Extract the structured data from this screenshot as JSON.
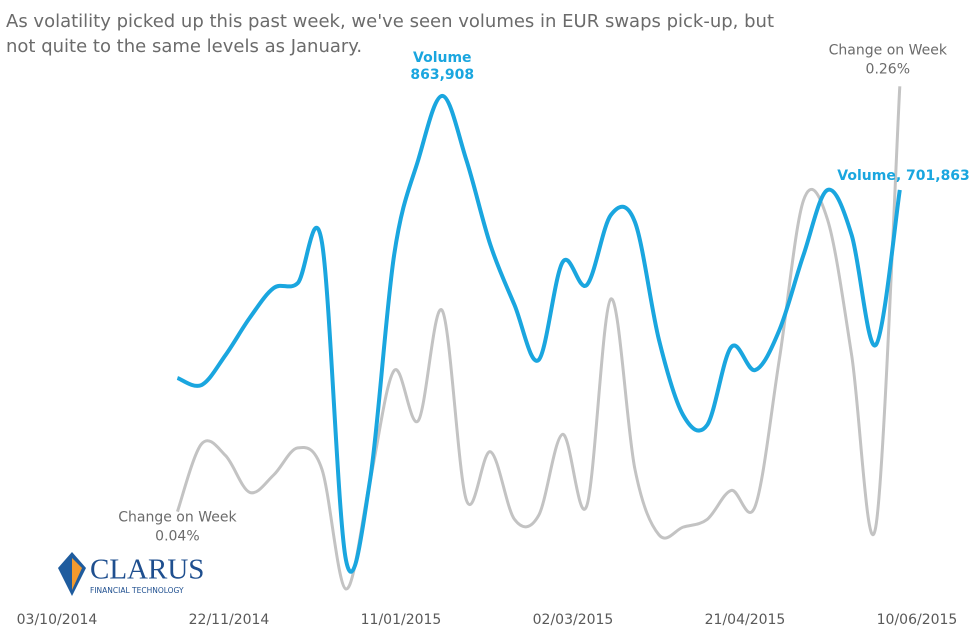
{
  "chart_data": {
    "type": "line",
    "title": [
      "As volatility picked up this past week, we've seen volumes in EUR swaps pick-up, but",
      "not quite to the same levels as January."
    ],
    "x": [
      "07/11/2014",
      "14/11/2014",
      "21/11/2014",
      "28/11/2014",
      "05/12/2014",
      "12/12/2014",
      "19/12/2014",
      "26/12/2014",
      "02/01/2015",
      "09/01/2015",
      "16/01/2015",
      "23/01/2015",
      "30/01/2015",
      "06/02/2015",
      "13/02/2015",
      "20/02/2015",
      "27/02/2015",
      "06/03/2015",
      "13/03/2015",
      "20/03/2015",
      "27/03/2015",
      "03/04/2015",
      "10/04/2015",
      "17/04/2015",
      "24/04/2015",
      "01/05/2015",
      "08/05/2015",
      "15/05/2015",
      "22/05/2015",
      "29/05/2015",
      "05/06/2015"
    ],
    "xlim": [
      "03/10/2014",
      "10/06/2015"
    ],
    "xticks": [
      "03/10/2014",
      "22/11/2014",
      "11/01/2015",
      "02/03/2015",
      "21/04/2015",
      "10/06/2015"
    ],
    "ylim": [
      0,
      1000000
    ],
    "y2lim": [
      0,
      0.3
    ],
    "series": [
      {
        "name": "Volume",
        "color": "#1aa6df",
        "values": [
          377600,
          365500,
          417200,
          481000,
          532700,
          541300,
          612000,
          63800,
          201700,
          589600,
          753400,
          863908,
          753400,
          606800,
          503400,
          408600,
          577500,
          537900,
          658600,
          646500,
          443100,
          313800,
          296500,
          431000,
          391300,
          460300,
          589600,
          701700,
          624100,
          434400,
          701863
        ],
        "value_labels": [
          null,
          null,
          null,
          null,
          null,
          null,
          null,
          null,
          null,
          null,
          null,
          "863,908",
          null,
          null,
          null,
          null,
          null,
          null,
          null,
          null,
          null,
          null,
          null,
          null,
          null,
          null,
          null,
          null,
          null,
          null,
          "Volume,  701,863"
        ]
      },
      {
        "name": "Change on Week",
        "color": "#c3c3c3",
        "axis": "y2",
        "values": [
          0.04,
          0.075,
          0.069,
          0.05,
          0.059,
          0.073,
          0.062,
          0.0,
          0.056,
          0.113,
          0.087,
          0.144,
          0.046,
          0.071,
          0.036,
          0.038,
          0.08,
          0.043,
          0.15,
          0.062,
          0.028,
          0.032,
          0.036,
          0.051,
          0.043,
          0.119,
          0.201,
          0.191,
          0.121,
          0.032,
          0.26
        ],
        "value_labels": [
          "0.04%",
          null,
          null,
          null,
          null,
          null,
          null,
          null,
          null,
          null,
          null,
          null,
          null,
          null,
          null,
          null,
          null,
          null,
          null,
          null,
          null,
          null,
          null,
          null,
          null,
          null,
          null,
          null,
          null,
          null,
          "0.26%"
        ]
      }
    ]
  },
  "logo": {
    "name": "CLARUS",
    "tagline": "FINANCIAL TECHNOLOGY"
  }
}
